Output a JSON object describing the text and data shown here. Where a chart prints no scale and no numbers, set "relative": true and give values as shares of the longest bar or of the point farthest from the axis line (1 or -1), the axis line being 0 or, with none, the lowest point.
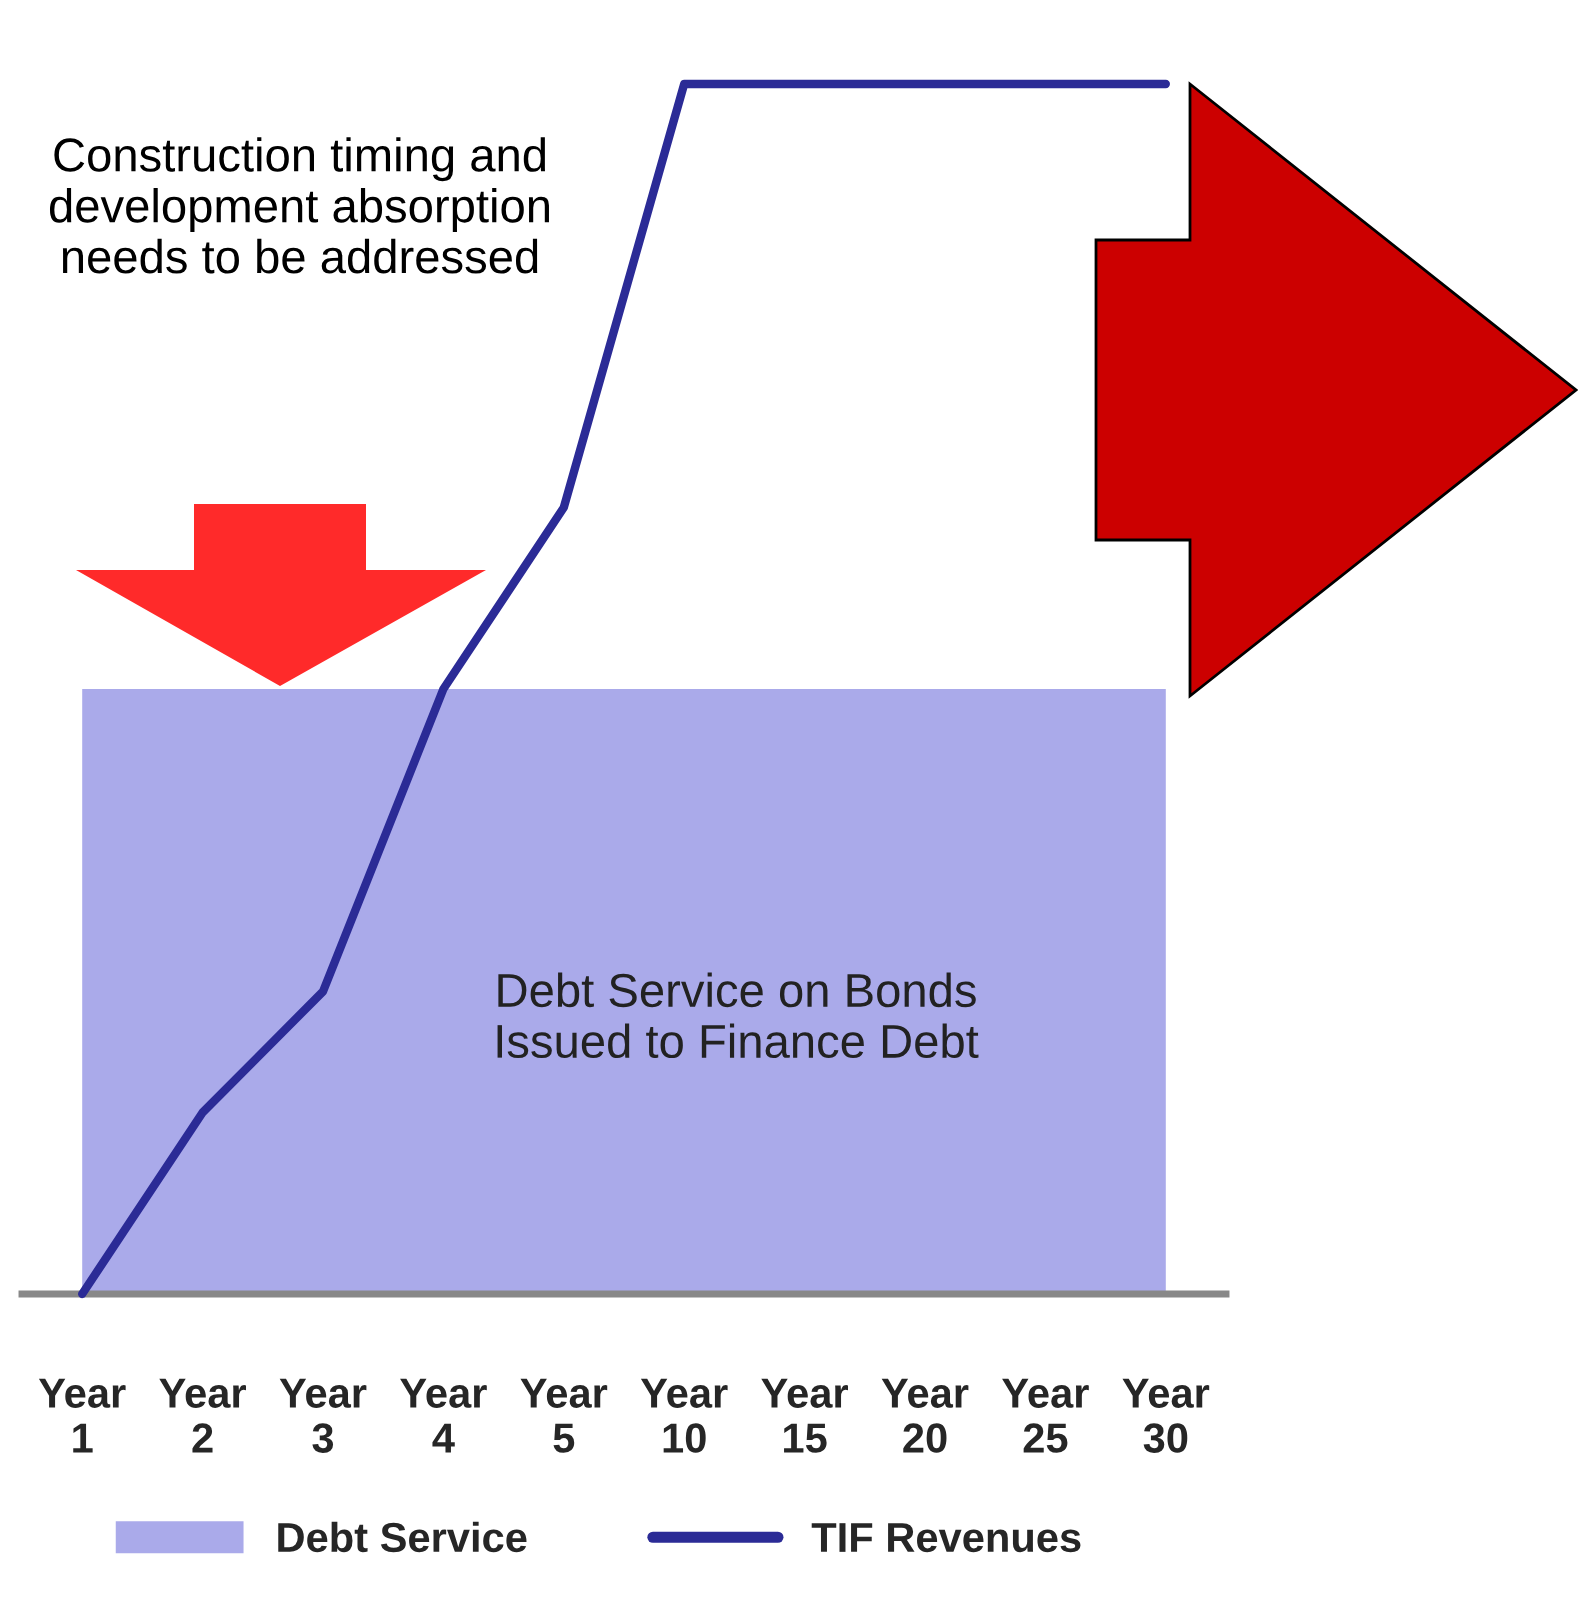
{
  "chart_data": {
    "type": "line",
    "relative": true,
    "categories": [
      "Year\n1",
      "Year\n2",
      "Year\n3",
      "Year\n4",
      "Year\n5",
      "Year\n10",
      "Year\n15",
      "Year\n20",
      "Year\n25",
      "Year\n30"
    ],
    "series": [
      {
        "name": "Debt Service",
        "type": "area",
        "color": "#aaaaea",
        "values": [
          0.5,
          0.5,
          0.5,
          0.5,
          0.5,
          0.5,
          0.5,
          0.5,
          0.5,
          0.5
        ]
      },
      {
        "name": "TIF Revenues",
        "color": "#2b2b96",
        "values": [
          0,
          0.15,
          0.25,
          0.5,
          0.65,
          1,
          1,
          1,
          1,
          1
        ]
      }
    ],
    "annotations": [
      "Construction timing and development absorption needs to be addressed",
      "Debt Service on Bonds Issued to Finance Debt"
    ],
    "legend": "bottom",
    "marker": "none",
    "line_style": "solid"
  }
}
